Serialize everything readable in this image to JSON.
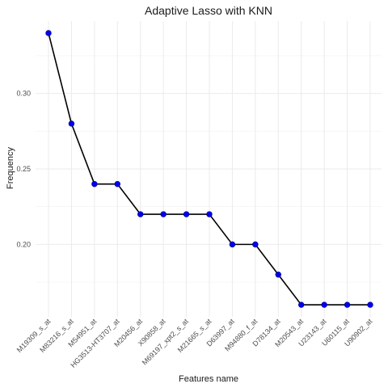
{
  "chart_data": {
    "type": "line",
    "title": "Adaptive Lasso with KNN",
    "xlabel": "Features name",
    "ylabel": "Frequency",
    "categories": [
      "M19309_s_at",
      "M83216_s_at",
      "M54951_at",
      "HG3513-HT3707_at",
      "M20456_at",
      "X90858_at",
      "M69197_xpt2_s_at",
      "M21665_s_at",
      "D63997_at",
      "M94880_f_at",
      "D78134_at",
      "M20543_at",
      "U23143_at",
      "U60115_at",
      "U90902_at"
    ],
    "values": [
      0.34,
      0.28,
      0.24,
      0.24,
      0.22,
      0.22,
      0.22,
      0.22,
      0.2,
      0.2,
      0.18,
      0.16,
      0.16,
      0.16,
      0.16
    ],
    "yticks": [
      "0.20",
      "0.25",
      "0.30"
    ],
    "ylim": [
      0.152,
      0.348
    ],
    "grid": true,
    "line_color": "#000000",
    "point_color": "#0000ee"
  }
}
